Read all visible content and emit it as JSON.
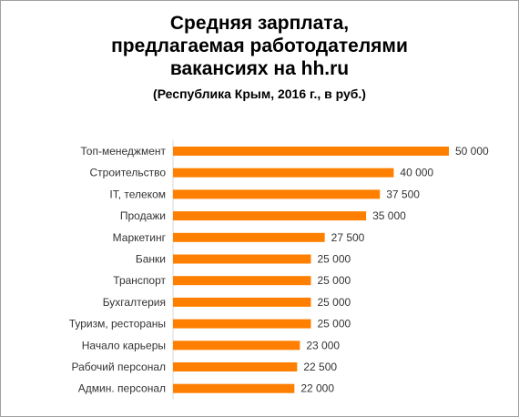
{
  "chart_data": {
    "type": "bar",
    "orientation": "horizontal",
    "title_lines": [
      "Средняя зарплата,",
      "предлагаемая работодателями",
      "вакансиях на hh.ru"
    ],
    "subtitle": "(Республика  Крым, 2016 г., в руб.)",
    "categories": [
      "Топ-менеджмент",
      "Строительство",
      "IT, телеком",
      "Продажи",
      "Маркетинг",
      "Банки",
      "Транспорт",
      "Бухгалтерия",
      "Туризм, рестораны",
      "Начало карьеры",
      "Рабочий персонал",
      "Админ. персонал"
    ],
    "values": [
      50000,
      40000,
      37500,
      35000,
      27500,
      25000,
      25000,
      25000,
      25000,
      23000,
      22500,
      22000
    ],
    "value_labels": [
      "50 000",
      "40 000",
      "37 500",
      "35 000",
      "27 500",
      "25 000",
      "25 000",
      "25 000",
      "25 000",
      "23 000",
      "22 500",
      "22 000"
    ],
    "xlim": [
      0,
      50000
    ],
    "grid": false,
    "legend": "none",
    "bar_color": "#FF7F00"
  }
}
